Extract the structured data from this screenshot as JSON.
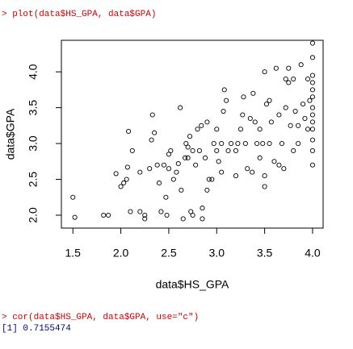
{
  "console": {
    "plot_command": "> plot(data$HS_GPA, data$GPA)",
    "cor_command": "> cor(data$HS_GPA, data$GPA, use=\"c\")",
    "cor_output": "[1] 0.7155474"
  },
  "chart_data": {
    "type": "scatter",
    "x_label": "data$HS_GPA",
    "y_label": "data$GPA",
    "color": "#000000",
    "xlim": [
      1.38,
      4.11
    ],
    "ylim": [
      1.82,
      4.44
    ],
    "xticks": [
      1.5,
      {
        "value": 2,
        "label": "2.0"
      },
      2.5,
      {
        "value": 3,
        "label": "3.0"
      },
      3.5,
      {
        "value": 4,
        "label": "4.0"
      }
    ],
    "yticks": [
      {
        "value": 2,
        "label": "2.0"
      },
      2.5,
      {
        "value": 3,
        "label": "3.0"
      },
      3.5,
      {
        "value": 4,
        "label": "4.0"
      }
    ],
    "x": [
      1.5,
      1.52,
      1.82,
      1.87,
      1.95,
      2.0,
      2.03,
      2.06,
      2.07,
      2.08,
      2.1,
      2.12,
      2.2,
      2.2,
      2.25,
      2.25,
      2.3,
      2.32,
      2.33,
      2.35,
      2.38,
      2.4,
      2.42,
      2.45,
      2.47,
      2.48,
      2.5,
      2.5,
      2.52,
      2.55,
      2.58,
      2.6,
      2.62,
      2.63,
      2.65,
      2.67,
      2.68,
      2.7,
      2.7,
      2.72,
      2.73,
      2.75,
      2.75,
      2.78,
      2.8,
      2.82,
      2.84,
      2.85,
      2.85,
      2.88,
      2.9,
      2.9,
      2.92,
      2.95,
      2.97,
      3.0,
      3.0,
      3.02,
      3.05,
      3.05,
      3.07,
      3.08,
      3.1,
      3.12,
      3.15,
      3.2,
      3.2,
      3.22,
      3.25,
      3.27,
      3.28,
      3.3,
      3.32,
      3.35,
      3.37,
      3.38,
      3.4,
      3.42,
      3.45,
      3.45,
      3.48,
      3.5,
      3.5,
      3.5,
      3.52,
      3.55,
      3.55,
      3.57,
      3.6,
      3.62,
      3.65,
      3.65,
      3.68,
      3.7,
      3.72,
      3.72,
      3.75,
      3.75,
      3.77,
      3.8,
      3.8,
      3.82,
      3.85,
      3.85,
      3.88,
      3.9,
      3.92,
      3.95,
      3.95,
      3.97,
      4.0,
      4.0,
      4.0,
      4.0,
      4.0,
      4.0,
      4.0,
      4.0,
      4.0,
      4.0,
      4.0,
      4.0,
      4.0
    ],
    "values": [
      2.25,
      1.97,
      2.0,
      2.0,
      2.58,
      2.4,
      2.45,
      2.5,
      2.67,
      3.17,
      2.05,
      2.9,
      2.6,
      2.05,
      1.95,
      2.0,
      2.65,
      3.05,
      3.4,
      3.15,
      2.7,
      2.45,
      2.05,
      2.7,
      2.25,
      2.0,
      2.65,
      2.85,
      2.9,
      2.5,
      2.6,
      2.72,
      3.5,
      2.35,
      1.95,
      2.8,
      3.0,
      2.95,
      2.8,
      3.1,
      2.05,
      2.0,
      2.9,
      2.7,
      3.2,
      2.9,
      3.25,
      2.1,
      1.95,
      2.8,
      3.3,
      2.35,
      2.5,
      2.5,
      3.0,
      2.9,
      3.2,
      2.75,
      2.6,
      3.0,
      3.45,
      3.75,
      3.6,
      2.9,
      3.0,
      2.9,
      2.55,
      3.0,
      3.2,
      3.4,
      3.65,
      3.0,
      2.65,
      3.35,
      2.6,
      3.7,
      3.3,
      3.0,
      2.8,
      3.2,
      3.0,
      2.4,
      2.55,
      4.0,
      3.55,
      3.6,
      3.0,
      3.3,
      2.75,
      4.05,
      2.7,
      3.4,
      3.0,
      2.65,
      3.9,
      3.5,
      3.85,
      4.05,
      3.25,
      3.9,
      2.9,
      3.45,
      3.25,
      3.0,
      4.1,
      3.55,
      3.35,
      3.9,
      3.2,
      3.6,
      4.4,
      4.2,
      3.95,
      3.85,
      3.75,
      3.65,
      3.5,
      3.4,
      3.3,
      3.2,
      3.05,
      2.9,
      2.7
    ]
  }
}
